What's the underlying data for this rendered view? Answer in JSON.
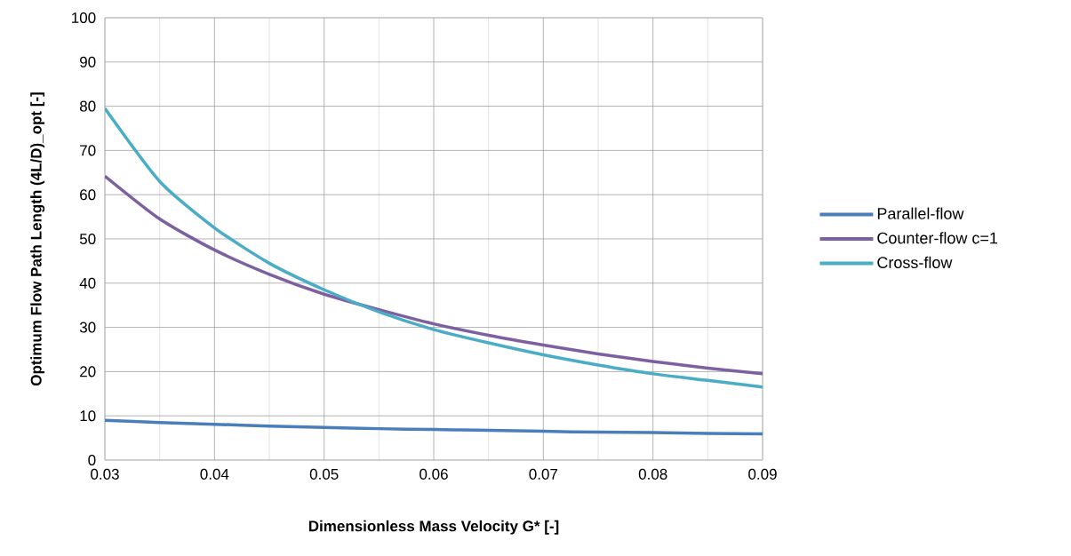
{
  "chart_data": {
    "type": "line",
    "xlabel": "Dimensionless Mass Velocity G* [-]",
    "ylabel": "Optimum Flow Path Length (4L/D)_opt [-]",
    "x": [
      0.03,
      0.035,
      0.04,
      0.045,
      0.05,
      0.055,
      0.06,
      0.065,
      0.07,
      0.075,
      0.08,
      0.085,
      0.09
    ],
    "series": [
      {
        "name": "Parallel-flow",
        "color": "#4a7ebb",
        "values": [
          9.0,
          8.5,
          8.1,
          7.7,
          7.4,
          7.1,
          6.9,
          6.7,
          6.5,
          6.3,
          6.2,
          6.0,
          5.9
        ]
      },
      {
        "name": "Counter-flow c=1",
        "color": "#7d60a0",
        "values": [
          64.2,
          54.5,
          47.5,
          42.0,
          37.5,
          34.0,
          30.8,
          28.2,
          26.0,
          24.0,
          22.3,
          20.8,
          19.5
        ]
      },
      {
        "name": "Cross-flow",
        "color": "#4bacc6",
        "values": [
          79.5,
          63.0,
          52.5,
          44.5,
          38.5,
          33.5,
          29.5,
          26.5,
          23.8,
          21.5,
          19.5,
          18.0,
          16.5
        ]
      }
    ],
    "xlim": [
      0.03,
      0.09
    ],
    "ylim": [
      0,
      100
    ],
    "xticks": [
      0.03,
      {
        "value": 0.035,
        "label": null
      },
      0.04,
      {
        "value": 0.045,
        "label": null
      },
      0.05,
      {
        "value": 0.055,
        "label": null
      },
      0.06,
      {
        "value": 0.065,
        "label": null
      },
      0.07,
      {
        "value": 0.075,
        "label": null
      },
      0.08,
      {
        "value": 0.085,
        "label": null
      },
      0.09
    ],
    "yticks": [
      0,
      10,
      20,
      30,
      40,
      50,
      60,
      70,
      80,
      90,
      100
    ],
    "grid": true,
    "legend": "right",
    "marker": "none",
    "line_style": "solid"
  }
}
